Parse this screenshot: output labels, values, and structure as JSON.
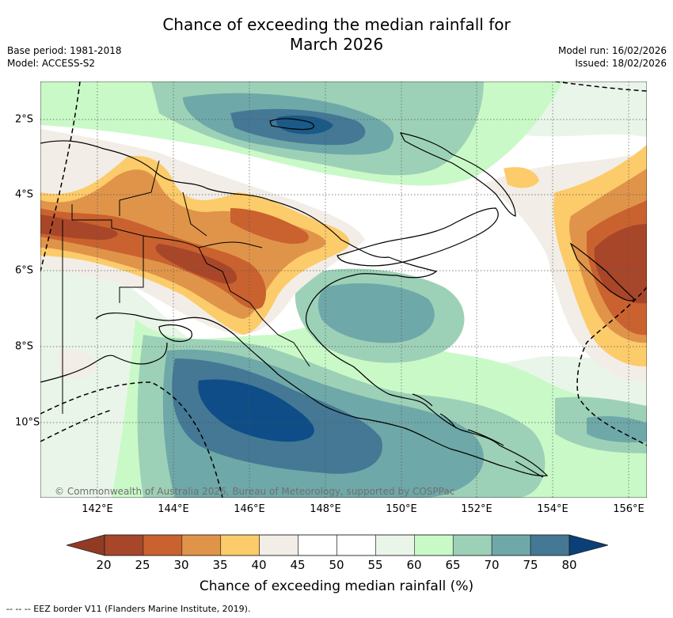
{
  "title_line1": "Chance of exceeding the median rainfall for",
  "title_line2": "March 2026",
  "base_period": "Base period: 1981-2018",
  "model": "Model: ACCESS-S2",
  "model_run": "Model run: 16/02/2026",
  "issued": "Issued: 18/02/2026",
  "copyright": "© Commonwealth of Australia 2026, Bureau of Meteorology, supported by COSPPac",
  "x_ticks": [
    "142°E",
    "144°E",
    "146°E",
    "148°E",
    "150°E",
    "152°E",
    "154°E",
    "156°E"
  ],
  "y_ticks": [
    "2°S",
    "4°S",
    "6°S",
    "8°S",
    "10°S"
  ],
  "colorbar": {
    "label": "Chance of exceeding median rainfall (%)",
    "ticks": [
      "20",
      "25",
      "30",
      "35",
      "40",
      "45",
      "50",
      "55",
      "60",
      "65",
      "70",
      "75",
      "80"
    ],
    "colors": [
      "#a8462a",
      "#c9622f",
      "#e0944a",
      "#fccb6a",
      "#f2ede6",
      "#ffffff",
      "#ffffff",
      "#eaf5ea",
      "#caf9c8",
      "#9dd1b7",
      "#6fa8a8",
      "#447895",
      "#0e4d87"
    ],
    "under_color": "#933a24",
    "over_color": "#0b3f78"
  },
  "footer": "--  --  -- EEZ border V11 (Flanders Marine Institute, 2019)."
}
